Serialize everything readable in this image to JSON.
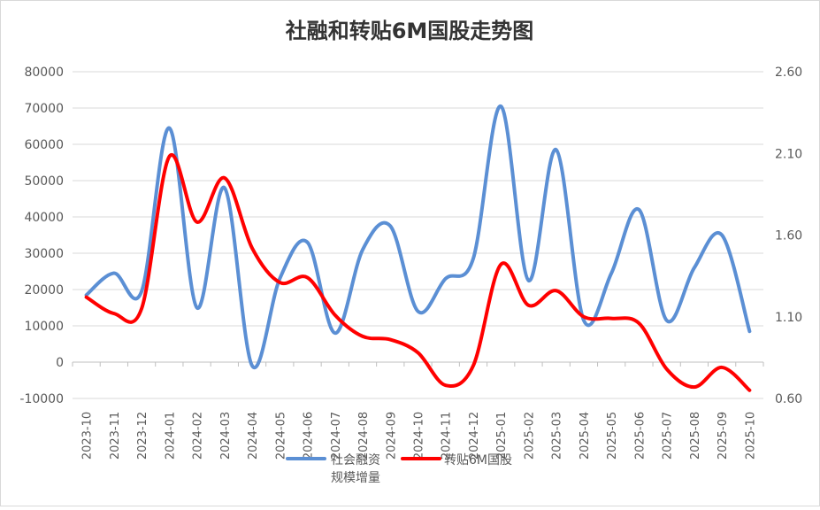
{
  "chart_data": {
    "type": "line",
    "title": "社融和转贴6M国股走势图",
    "categories": [
      "2023-10",
      "2023-11",
      "2023-12",
      "2024-01",
      "2024-02",
      "2024-03",
      "2024-04",
      "2024-05",
      "2024-06",
      "2024-07",
      "2024-08",
      "2024-09",
      "2024-10",
      "2024-11",
      "2024-12",
      "2025-01",
      "2025-02",
      "2025-03",
      "2025-04",
      "2025-05",
      "2025-06",
      "2025-07",
      "2025-08",
      "2025-09",
      "2025-10"
    ],
    "left_axis": {
      "min": -10000,
      "max": 80000,
      "ticks": [
        "-10000",
        "0",
        "10000",
        "20000",
        "30000",
        "40000",
        "50000",
        "60000",
        "70000",
        "80000"
      ]
    },
    "right_axis": {
      "min": 0.6,
      "max": 2.6,
      "ticks": [
        "0.60",
        "1.10",
        "1.60",
        "2.10",
        "2.60"
      ]
    },
    "grid": true,
    "legend_position": "bottom",
    "series": [
      {
        "name": "社会融资规模增量",
        "axis": "left",
        "color": "#5B8FD4",
        "values": [
          18500,
          24500,
          19500,
          64500,
          15000,
          48000,
          -1000,
          23000,
          33000,
          8000,
          31000,
          37500,
          14000,
          23000,
          28500,
          70500,
          22500,
          58500,
          11500,
          24500,
          42000,
          11500,
          26000,
          35000,
          8500
        ]
      },
      {
        "name": "转贴6M国股",
        "axis": "right",
        "color": "#FF0000",
        "values": [
          1.22,
          1.12,
          1.15,
          2.08,
          1.68,
          1.95,
          1.52,
          1.31,
          1.34,
          1.11,
          0.98,
          0.96,
          0.88,
          0.68,
          0.8,
          1.42,
          1.17,
          1.26,
          1.1,
          1.09,
          1.06,
          0.78,
          0.67,
          0.79,
          0.65
        ]
      }
    ]
  }
}
